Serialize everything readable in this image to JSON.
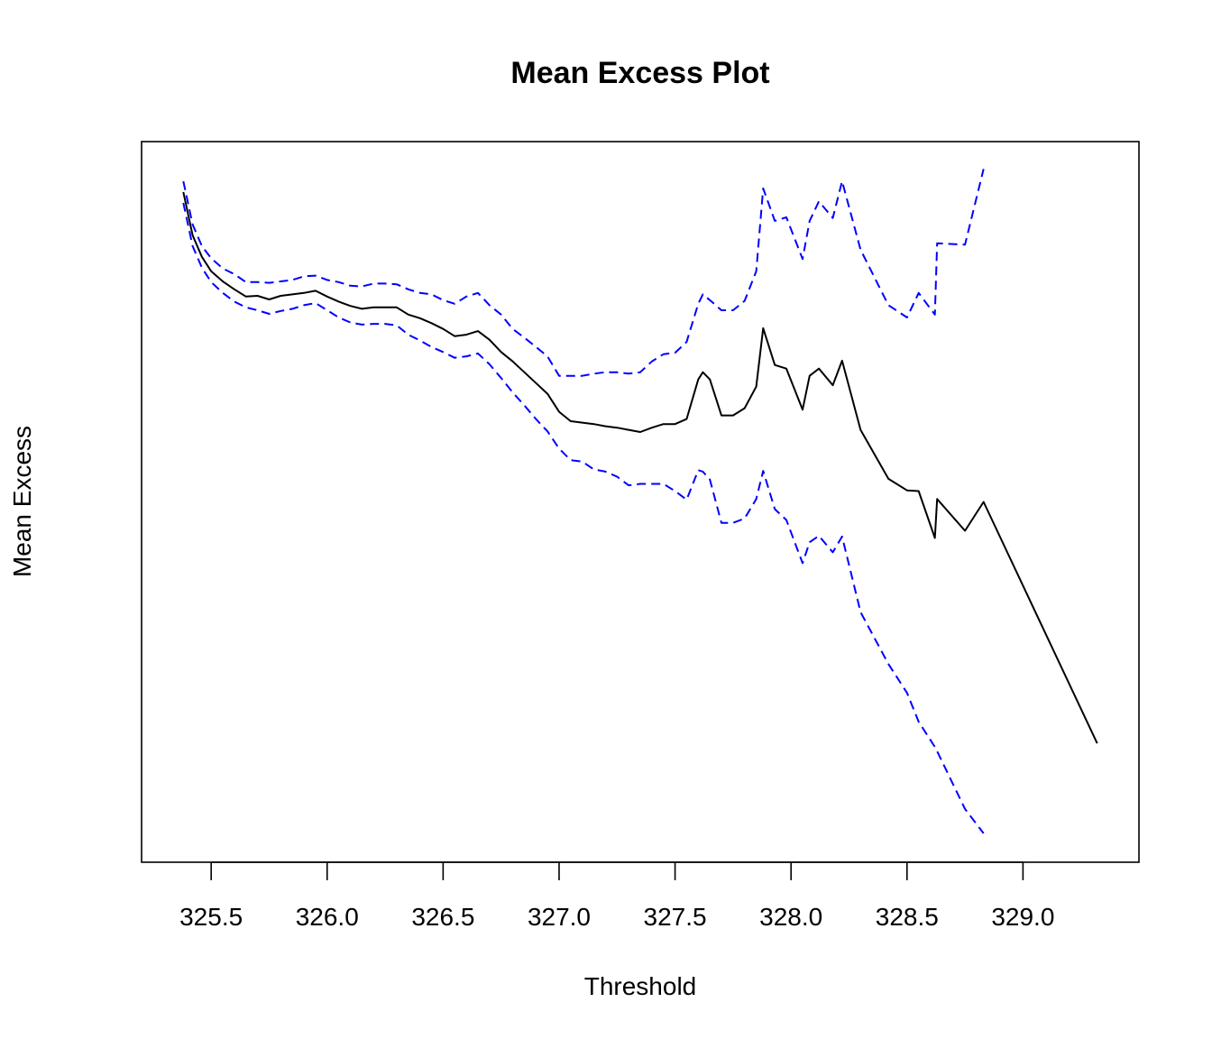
{
  "chart_data": {
    "type": "line",
    "title": "Mean Excess Plot",
    "xlabel": "Threshold",
    "ylabel": "Mean Excess",
    "xlim": [
      325.2,
      329.5
    ],
    "ylim": [
      0,
      100
    ],
    "y_ticks_shown": false,
    "x_ticks": [
      325.5,
      326.0,
      326.5,
      327.0,
      327.5,
      328.0,
      328.5,
      329.0
    ],
    "x_tick_labels": [
      "325.5",
      "326.0",
      "326.5",
      "327.0",
      "327.5",
      "328.0",
      "328.5",
      "329.0"
    ],
    "grid": false,
    "legend": "none",
    "series": [
      {
        "style": "solid",
        "color": "#000000",
        "x": [
          325.38,
          325.42,
          325.46,
          325.5,
          325.55,
          325.6,
          325.65,
          325.7,
          325.75,
          325.8,
          325.85,
          325.9,
          325.95,
          326.0,
          326.05,
          326.1,
          326.15,
          326.2,
          326.25,
          326.3,
          326.35,
          326.4,
          326.45,
          326.5,
          326.55,
          326.6,
          326.65,
          326.7,
          326.75,
          326.8,
          326.85,
          326.9,
          326.95,
          327.0,
          327.05,
          327.1,
          327.15,
          327.2,
          327.25,
          327.3,
          327.35,
          327.4,
          327.45,
          327.5,
          327.55,
          327.6,
          327.62,
          327.65,
          327.7,
          327.75,
          327.8,
          327.85,
          327.88,
          327.93,
          327.98,
          328.05,
          328.08,
          328.12,
          328.18,
          328.22,
          328.3,
          328.42,
          328.5,
          328.55,
          328.62,
          328.63,
          328.75,
          328.83,
          329.32
        ],
        "y": [
          93,
          87,
          84,
          82,
          80.6,
          79.5,
          78.5,
          78.6,
          78.1,
          78.6,
          78.8,
          79,
          79.3,
          78.5,
          77.8,
          77.2,
          76.8,
          77,
          77,
          77,
          76,
          75.5,
          74.8,
          74,
          73,
          73.2,
          73.7,
          72.5,
          70.8,
          69.5,
          68,
          66.5,
          65,
          62.5,
          61.2,
          61,
          60.8,
          60.5,
          60.3,
          60,
          59.7,
          60.3,
          60.8,
          60.8,
          61.5,
          67,
          68,
          67,
          62,
          62,
          63,
          66,
          74.1,
          69,
          68.5,
          62.8,
          67.5,
          68.5,
          66.2,
          69.6,
          60,
          53.2,
          51.6,
          51.5,
          45,
          50.4,
          46,
          50,
          16.5
        ]
      },
      {
        "style": "dashed",
        "color": "#0000ff",
        "x": [
          325.38,
          325.42,
          325.46,
          325.5,
          325.55,
          325.6,
          325.65,
          325.7,
          325.75,
          325.8,
          325.85,
          325.9,
          325.95,
          326.0,
          326.05,
          326.1,
          326.15,
          326.2,
          326.25,
          326.3,
          326.35,
          326.4,
          326.45,
          326.5,
          326.55,
          326.6,
          326.65,
          326.7,
          326.75,
          326.8,
          326.85,
          326.9,
          326.95,
          327.0,
          327.05,
          327.1,
          327.15,
          327.2,
          327.25,
          327.3,
          327.35,
          327.4,
          327.45,
          327.5,
          327.55,
          327.6,
          327.62,
          327.65,
          327.7,
          327.75,
          327.8,
          327.85,
          327.88,
          327.93,
          327.98,
          328.05,
          328.08,
          328.12,
          328.18,
          328.22,
          328.3,
          328.42,
          328.5,
          328.55,
          328.62,
          328.63,
          328.75,
          328.83
        ],
        "y": [
          94.5,
          88.5,
          85.5,
          83.8,
          82.4,
          81.6,
          80.5,
          80.5,
          80.4,
          80.6,
          80.8,
          81.3,
          81.4,
          80.8,
          80.5,
          80,
          79.9,
          80.3,
          80.3,
          80.2,
          79.5,
          79,
          78.8,
          78,
          77.5,
          78.5,
          79,
          77.3,
          76,
          74,
          72.8,
          71.5,
          70.2,
          67.5,
          67.5,
          67.5,
          67.8,
          68,
          68,
          67.8,
          68,
          69.5,
          70.5,
          70.7,
          72.2,
          77.5,
          78.8,
          78,
          76.6,
          76.6,
          77.9,
          82,
          93.5,
          89,
          89.5,
          83.7,
          89,
          91.7,
          89.4,
          94.5,
          85,
          77.3,
          75.6,
          79,
          76,
          85.9,
          85.7,
          96.2
        ]
      },
      {
        "style": "dashed",
        "color": "#0000ff",
        "x": [
          325.38,
          325.42,
          325.46,
          325.5,
          325.55,
          325.6,
          325.65,
          325.7,
          325.75,
          325.8,
          325.85,
          325.9,
          325.95,
          326.0,
          326.05,
          326.1,
          326.15,
          326.2,
          326.25,
          326.3,
          326.35,
          326.4,
          326.45,
          326.5,
          326.55,
          326.6,
          326.65,
          326.7,
          326.75,
          326.8,
          326.85,
          326.9,
          326.95,
          327.0,
          327.05,
          327.1,
          327.15,
          327.2,
          327.25,
          327.3,
          327.35,
          327.4,
          327.45,
          327.5,
          327.55,
          327.6,
          327.62,
          327.65,
          327.7,
          327.75,
          327.8,
          327.85,
          327.88,
          327.93,
          327.98,
          328.05,
          328.08,
          328.12,
          328.18,
          328.22,
          328.3,
          328.42,
          328.5,
          328.55,
          328.62,
          328.63,
          328.75,
          328.83
        ],
        "y": [
          91.5,
          85.5,
          82.5,
          80.5,
          79,
          77.8,
          77,
          76.6,
          76.1,
          76.5,
          76.8,
          77.3,
          77.6,
          76.6,
          75.6,
          74.9,
          74.6,
          74.7,
          74.7,
          74.5,
          73.2,
          72.4,
          71.5,
          70.8,
          70,
          70.2,
          70.6,
          69.1,
          67.2,
          65.2,
          63.4,
          61.5,
          59.8,
          57.4,
          55.8,
          55.6,
          54.5,
          54.2,
          53.5,
          52.3,
          52.5,
          52.5,
          52.5,
          51.5,
          50.3,
          54.4,
          54.2,
          53.1,
          47.1,
          47.1,
          47.7,
          50.4,
          54.3,
          49,
          47.5,
          41.5,
          44.4,
          45.3,
          43,
          45.2,
          34.7,
          27.5,
          23.5,
          19.5,
          16,
          15.4,
          7.4,
          4
        ]
      }
    ]
  }
}
